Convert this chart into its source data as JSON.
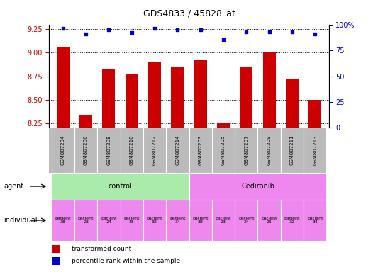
{
  "title": "GDS4833 / 45828_at",
  "samples": [
    "GSM807204",
    "GSM807206",
    "GSM807208",
    "GSM807210",
    "GSM807212",
    "GSM807214",
    "GSM807203",
    "GSM807205",
    "GSM807207",
    "GSM807209",
    "GSM807211",
    "GSM807213"
  ],
  "bar_values": [
    9.06,
    8.33,
    8.83,
    8.77,
    8.9,
    8.85,
    8.93,
    8.26,
    8.85,
    9.0,
    8.72,
    8.5
  ],
  "percentile_values": [
    96,
    91,
    95,
    92,
    96,
    95,
    95,
    85,
    93,
    93,
    93,
    91
  ],
  "ylim_left": [
    8.2,
    9.3
  ],
  "ylim_right": [
    0,
    100
  ],
  "yticks_left": [
    8.25,
    8.5,
    8.75,
    9.0,
    9.25
  ],
  "yticks_right": [
    0,
    25,
    50,
    75,
    100
  ],
  "bar_color": "#cc0000",
  "dot_color": "#0000cc",
  "agent_groups": [
    {
      "label": "control",
      "start": 0,
      "end": 6,
      "color": "#aaeaaa"
    },
    {
      "label": "Cediranib",
      "start": 6,
      "end": 12,
      "color": "#ee88ee"
    }
  ],
  "individual_labels": [
    "patient\n38",
    "patient\n23",
    "patient\n24",
    "patient\n25",
    "patient\n32",
    "patient\n34",
    "patient\n38",
    "patient\n23",
    "patient\n24",
    "patient\n25",
    "patient\n32",
    "patient\n34"
  ],
  "individual_color": "#ee88ee",
  "legend_items": [
    {
      "color": "#cc0000",
      "label": "transformed count"
    },
    {
      "color": "#0000cc",
      "label": "percentile rank within the sample"
    }
  ],
  "tick_label_color_left": "#cc0000",
  "tick_label_color_right": "#0000cc",
  "agent_label": "agent",
  "individual_label": "individual",
  "sample_bg_color": "#bbbbbb"
}
